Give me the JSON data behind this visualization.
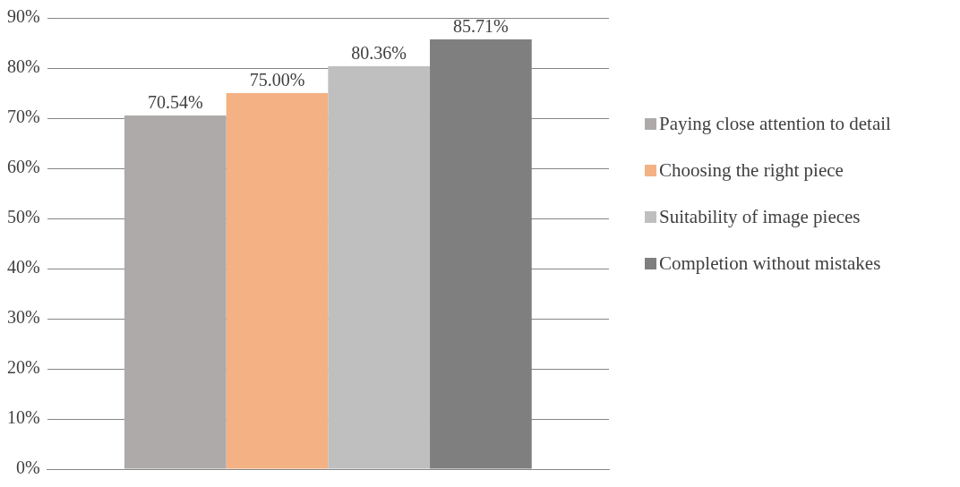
{
  "chart_data": {
    "type": "bar",
    "categories": [
      null
    ],
    "series": [
      {
        "name": "Paying close attention to detail",
        "color": "#aeaaaa",
        "values": [
          70.54
        ],
        "value_labels": [
          "70.54%"
        ]
      },
      {
        "name": "Choosing the right piece",
        "color": "#f4b183",
        "values": [
          75.0
        ],
        "value_labels": [
          "75.00%"
        ]
      },
      {
        "name": "Suitability of image pieces",
        "color": "#bfbfbf",
        "values": [
          80.36
        ],
        "value_labels": [
          "80.36%"
        ]
      },
      {
        "name": "Completion without mistakes",
        "color": "#7f7f7f",
        "values": [
          85.71
        ],
        "value_labels": [
          "85.71%"
        ]
      }
    ],
    "ylim": [
      0,
      90
    ],
    "yticks": [
      {
        "value": 0,
        "label": "0%"
      },
      {
        "value": 10,
        "label": "10%"
      },
      {
        "value": 20,
        "label": "20%"
      },
      {
        "value": 30,
        "label": "30%"
      },
      {
        "value": 40,
        "label": "40%"
      },
      {
        "value": 50,
        "label": "50%"
      },
      {
        "value": 60,
        "label": "60%"
      },
      {
        "value": 70,
        "label": "70%"
      },
      {
        "value": 80,
        "label": "80%"
      },
      {
        "value": 90,
        "label": "90%"
      }
    ],
    "grid": "y",
    "legend": "right",
    "tick_labels": "y"
  }
}
